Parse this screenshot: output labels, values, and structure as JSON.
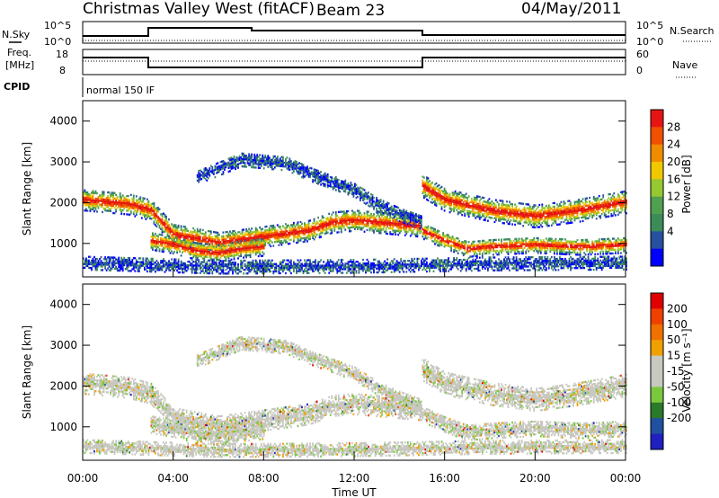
{
  "header": {
    "station": "Christmas Valley West (fitACF)",
    "beam": "Beam 23",
    "date": "04/May/2011"
  },
  "strip_labels": {
    "nsky": "N.Sky",
    "nsky_ticks": [
      "10^5",
      "10^0"
    ],
    "nsearch": "N.Search",
    "nsearch_ticks": [
      "10^5",
      "10^0"
    ],
    "freq_top": "Freq.",
    "freq_unit": "[MHz]",
    "freq_ticks": [
      "18",
      "8"
    ],
    "nave": "Nave",
    "nave_ticks": [
      "60",
      "0"
    ],
    "cpid": "CPID",
    "cpid_value": "normal 150 IF"
  },
  "colors": {
    "power": [
      "#0000ff",
      "#2850a0",
      "#3c8c5a",
      "#50a050",
      "#96c832",
      "#f0c800",
      "#f08c00",
      "#f05000",
      "#e61414"
    ],
    "velocity": [
      "#2020c0",
      "#2050a0",
      "#2a7a2a",
      "#7ac83c",
      "#c8c8c0",
      "#c8c8c0",
      "#f0a000",
      "#f07000",
      "#f04000",
      "#e00000"
    ]
  },
  "chart_data": [
    {
      "type": "heatmap",
      "panel": "power",
      "ylabel": "Slant Range [km]",
      "ylim": [
        180,
        4500
      ],
      "yticks": [
        "1000",
        "2000",
        "3000",
        "4000"
      ],
      "colorbar_label": "Power [dB]",
      "colorbar_ticks": [
        "28",
        "24",
        "20",
        "16",
        "12",
        "8",
        "4"
      ]
    },
    {
      "type": "heatmap",
      "panel": "velocity",
      "ylabel": "Slant Range [km]",
      "ylim": [
        180,
        4500
      ],
      "yticks": [
        "1000",
        "2000",
        "3000",
        "4000"
      ],
      "colorbar_label": "Velocity [m s⁻¹]",
      "colorbar_ticks": [
        "200",
        "100",
        "50",
        "15",
        "-15",
        "-50",
        "-100",
        "-200"
      ]
    }
  ],
  "xaxis": {
    "label": "Time UT",
    "ticks": [
      "00:00",
      "04:00",
      "08:00",
      "12:00",
      "16:00",
      "20:00",
      "00:00"
    ],
    "range_hours": [
      0,
      24
    ]
  }
}
